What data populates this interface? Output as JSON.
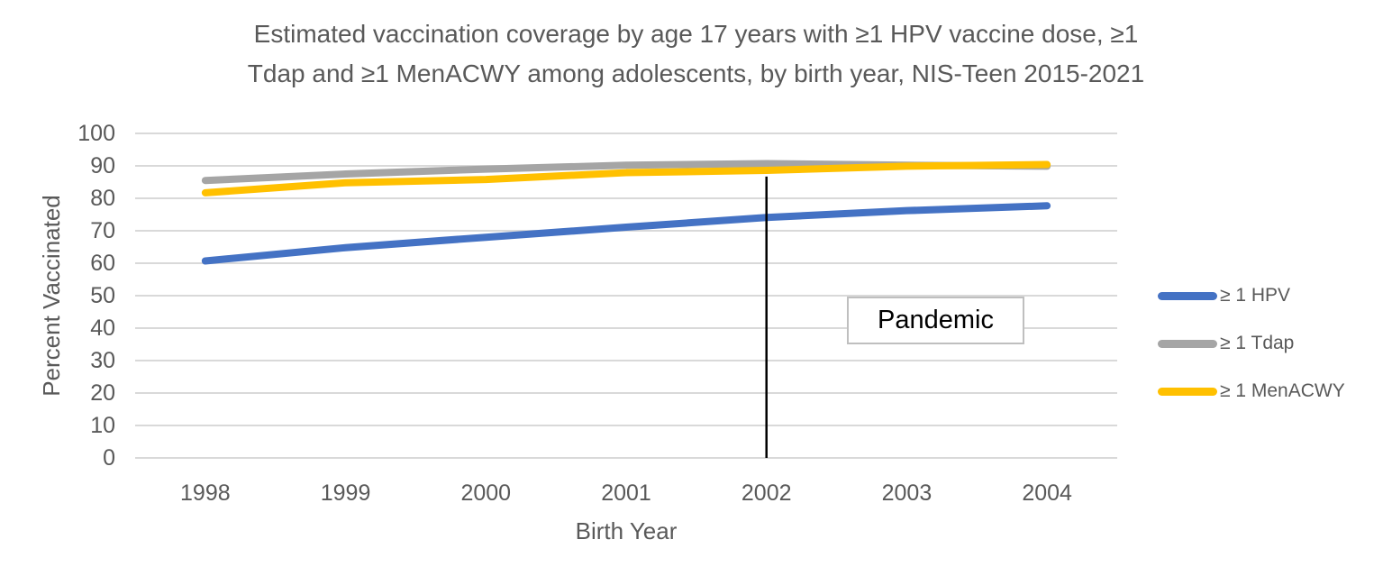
{
  "chart_data": {
    "type": "line",
    "title": "Estimated vaccination coverage by age 17 years with ≥1 HPV vaccine dose, ≥1 Tdap and ≥1 MenACWY among adolescents, by birth year, NIS-Teen 2015-2021",
    "title_lines": [
      "Estimated vaccination coverage by age 17 years with ≥1 HPV vaccine dose, ≥1",
      "Tdap and ≥1 MenACWY among adolescents, by birth year, NIS-Teen 2015-2021"
    ],
    "categories": [
      "1998",
      "1999",
      "2000",
      "2001",
      "2002",
      "2003",
      "2004"
    ],
    "series": [
      {
        "name": "≥ 1 HPV",
        "color": "#4472C4",
        "values": [
          60.7,
          64.8,
          68.0,
          71.1,
          74.1,
          76.2,
          77.7
        ]
      },
      {
        "name": "≥ 1 Tdap",
        "color": "#A5A5A5",
        "values": [
          85.5,
          87.5,
          89.0,
          90.2,
          90.7,
          90.2,
          89.9
        ]
      },
      {
        "name": "≥ 1 MenACWY",
        "color": "#FFC000",
        "values": [
          81.7,
          84.8,
          85.8,
          87.9,
          88.6,
          89.9,
          90.4
        ]
      }
    ],
    "xlabel": "Birth Year",
    "ylabel": "Percent Vaccinated",
    "ylim": [
      0,
      100
    ],
    "yticks": [
      0,
      10,
      20,
      30,
      40,
      50,
      60,
      70,
      80,
      90,
      100
    ],
    "grid": "horizontal",
    "legend_position": "right",
    "annotation": {
      "label": "Pandemic",
      "vline_category": "2002",
      "vline_top_value": 86.7
    }
  },
  "colors": {
    "text": "#595959",
    "gridline": "#D9D9D9",
    "vline": "#000000",
    "annotation_border": "#BFBFBF",
    "annotation_text": "#000000",
    "background": "#FFFFFF"
  }
}
